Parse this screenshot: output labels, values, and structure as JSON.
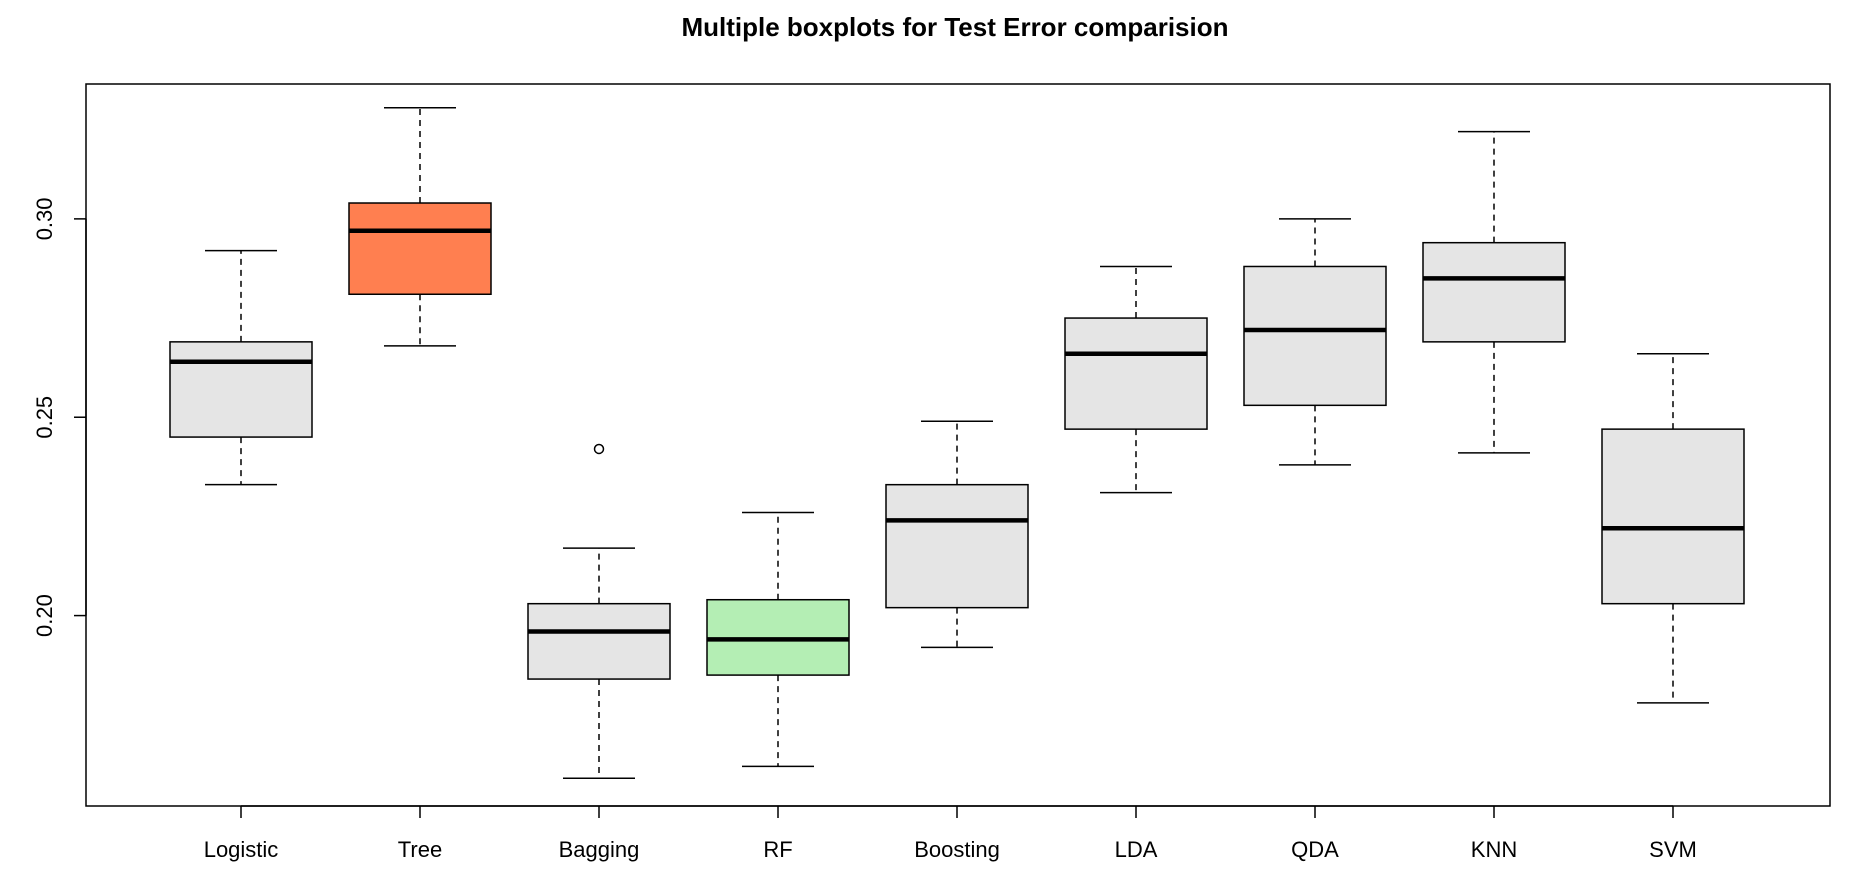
{
  "chart_data": {
    "type": "boxplot",
    "title": "Multiple boxplots for Test Error comparision",
    "xlabel": "",
    "ylabel": "",
    "ylim": [
      0.152,
      0.334
    ],
    "y_ticks": [
      0.2,
      0.25,
      0.3
    ],
    "y_tick_labels": [
      "0.20",
      "0.25",
      "0.30"
    ],
    "grid": false,
    "legend": "none",
    "default_fill": "#e5e5e5",
    "categories": [
      "Logistic",
      "Tree",
      "Bagging",
      "RF",
      "Boosting",
      "LDA",
      "QDA",
      "KNN",
      "SVM"
    ],
    "boxes": [
      {
        "name": "Logistic",
        "fill": "#e5e5e5",
        "whisker_low": 0.233,
        "q1": 0.245,
        "median": 0.264,
        "q3": 0.269,
        "whisker_high": 0.292,
        "outliers": []
      },
      {
        "name": "Tree",
        "fill": "#ff7f50",
        "whisker_low": 0.268,
        "q1": 0.281,
        "median": 0.297,
        "q3": 0.304,
        "whisker_high": 0.328,
        "outliers": []
      },
      {
        "name": "Bagging",
        "fill": "#e5e5e5",
        "whisker_low": 0.159,
        "q1": 0.184,
        "median": 0.196,
        "q3": 0.203,
        "whisker_high": 0.217,
        "outliers": [
          0.242
        ]
      },
      {
        "name": "RF",
        "fill": "#b4eeb4",
        "whisker_low": 0.162,
        "q1": 0.185,
        "median": 0.194,
        "q3": 0.204,
        "whisker_high": 0.226,
        "outliers": []
      },
      {
        "name": "Boosting",
        "fill": "#e5e5e5",
        "whisker_low": 0.192,
        "q1": 0.202,
        "median": 0.224,
        "q3": 0.233,
        "whisker_high": 0.249,
        "outliers": []
      },
      {
        "name": "LDA",
        "fill": "#e5e5e5",
        "whisker_low": 0.231,
        "q1": 0.247,
        "median": 0.266,
        "q3": 0.275,
        "whisker_high": 0.288,
        "outliers": []
      },
      {
        "name": "QDA",
        "fill": "#e5e5e5",
        "whisker_low": 0.238,
        "q1": 0.253,
        "median": 0.272,
        "q3": 0.288,
        "whisker_high": 0.3,
        "outliers": []
      },
      {
        "name": "KNN",
        "fill": "#e5e5e5",
        "whisker_low": 0.241,
        "q1": 0.269,
        "median": 0.285,
        "q3": 0.294,
        "whisker_high": 0.322,
        "outliers": []
      },
      {
        "name": "SVM",
        "fill": "#e5e5e5",
        "whisker_low": 0.178,
        "q1": 0.203,
        "median": 0.222,
        "q3": 0.247,
        "whisker_high": 0.266,
        "outliers": []
      }
    ]
  }
}
